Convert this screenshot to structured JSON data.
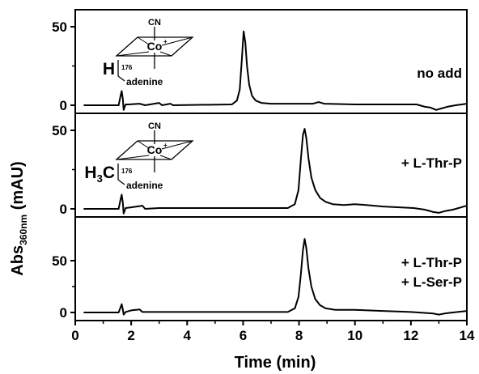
{
  "chart_data": {
    "type": "line",
    "xlabel": "Time (min)",
    "ylabel_main": "Abs",
    "ylabel_sub": "360nm",
    "ylabel_unit": " (mAU)",
    "xlim": [
      0,
      14
    ],
    "x_ticks": [
      "0",
      "2",
      "4",
      "6",
      "8",
      "10",
      "12",
      "14"
    ],
    "panels": [
      {
        "label_lines": [
          "no add"
        ],
        "ylim": [
          -5,
          63
        ],
        "y_ticks": [
          "0",
          "50"
        ],
        "molecule": {
          "group": "H",
          "group_sub": "",
          "position": "176",
          "ligand": "CN",
          "metal": "Co",
          "base": "adenine"
        },
        "points": [
          [
            0.3,
            0
          ],
          [
            1.55,
            0
          ],
          [
            1.62,
            6
          ],
          [
            1.66,
            9
          ],
          [
            1.7,
            4
          ],
          [
            1.73,
            -3
          ],
          [
            1.8,
            0.5
          ],
          [
            1.9,
            0.5
          ],
          [
            2.3,
            1
          ],
          [
            2.5,
            0
          ],
          [
            3.0,
            1.5
          ],
          [
            3.1,
            0
          ],
          [
            3.4,
            1
          ],
          [
            3.5,
            0
          ],
          [
            5.6,
            0.5
          ],
          [
            5.78,
            3
          ],
          [
            5.88,
            10
          ],
          [
            5.96,
            30
          ],
          [
            6.02,
            47
          ],
          [
            6.08,
            40
          ],
          [
            6.14,
            25
          ],
          [
            6.22,
            13
          ],
          [
            6.32,
            6
          ],
          [
            6.45,
            3
          ],
          [
            6.65,
            1.5
          ],
          [
            7,
            1
          ],
          [
            8.5,
            1
          ],
          [
            8.7,
            2
          ],
          [
            8.9,
            1
          ],
          [
            10,
            0.5
          ],
          [
            12.2,
            0.5
          ],
          [
            12.5,
            -1
          ],
          [
            12.7,
            -1.5
          ],
          [
            12.9,
            -3
          ],
          [
            13.1,
            -2
          ],
          [
            13.3,
            -1
          ],
          [
            13.6,
            0
          ],
          [
            14,
            1
          ]
        ]
      },
      {
        "label_lines": [
          "+ L-Thr-P"
        ],
        "ylim": [
          -5,
          63
        ],
        "y_ticks": [
          "0",
          "50"
        ],
        "molecule": {
          "group": "H",
          "group_sub": "3",
          "group_tail": "C",
          "position": "176",
          "ligand": "CN",
          "metal": "Co",
          "base": "adenine"
        },
        "points": [
          [
            0.3,
            0
          ],
          [
            1.55,
            0
          ],
          [
            1.62,
            6
          ],
          [
            1.66,
            9
          ],
          [
            1.7,
            4
          ],
          [
            1.73,
            -3
          ],
          [
            1.8,
            0.5
          ],
          [
            2.0,
            1
          ],
          [
            2.4,
            2
          ],
          [
            2.5,
            0
          ],
          [
            3,
            0.5
          ],
          [
            7.6,
            0.5
          ],
          [
            7.85,
            3
          ],
          [
            7.98,
            12
          ],
          [
            8.06,
            30
          ],
          [
            8.14,
            47
          ],
          [
            8.2,
            51
          ],
          [
            8.26,
            45
          ],
          [
            8.34,
            32
          ],
          [
            8.44,
            20
          ],
          [
            8.58,
            12
          ],
          [
            8.75,
            7
          ],
          [
            8.95,
            4.5
          ],
          [
            9.2,
            3
          ],
          [
            9.6,
            2.5
          ],
          [
            10,
            3
          ],
          [
            10.4,
            2.5
          ],
          [
            11,
            1.5
          ],
          [
            12.1,
            0.5
          ],
          [
            12.5,
            -0.5
          ],
          [
            12.8,
            -2
          ],
          [
            13.0,
            -2.5
          ],
          [
            13.2,
            -1.5
          ],
          [
            13.5,
            -0.5
          ],
          [
            14,
            2
          ]
        ]
      },
      {
        "label_lines": [
          "+ L-Thr-P",
          "+ L-Ser-P"
        ],
        "ylim": [
          -5,
          80
        ],
        "y_ticks": [
          "0",
          "50"
        ],
        "molecule": null,
        "points": [
          [
            0.3,
            0
          ],
          [
            1.55,
            0
          ],
          [
            1.62,
            5
          ],
          [
            1.66,
            8
          ],
          [
            1.7,
            3
          ],
          [
            1.73,
            -2
          ],
          [
            1.8,
            0.5
          ],
          [
            2.0,
            2
          ],
          [
            2.3,
            3
          ],
          [
            2.4,
            0.5
          ],
          [
            3,
            0.5
          ],
          [
            7.6,
            0.5
          ],
          [
            7.85,
            4
          ],
          [
            7.98,
            15
          ],
          [
            8.06,
            35
          ],
          [
            8.14,
            60
          ],
          [
            8.2,
            71
          ],
          [
            8.26,
            62
          ],
          [
            8.34,
            42
          ],
          [
            8.44,
            25
          ],
          [
            8.58,
            13
          ],
          [
            8.75,
            7
          ],
          [
            8.95,
            4
          ],
          [
            9.3,
            2.5
          ],
          [
            10,
            2.5
          ],
          [
            11,
            1.5
          ],
          [
            12,
            0.5
          ],
          [
            12.8,
            -1
          ],
          [
            13.0,
            -2
          ],
          [
            13.2,
            -1
          ],
          [
            13.5,
            0
          ],
          [
            14,
            1.5
          ]
        ]
      }
    ]
  }
}
